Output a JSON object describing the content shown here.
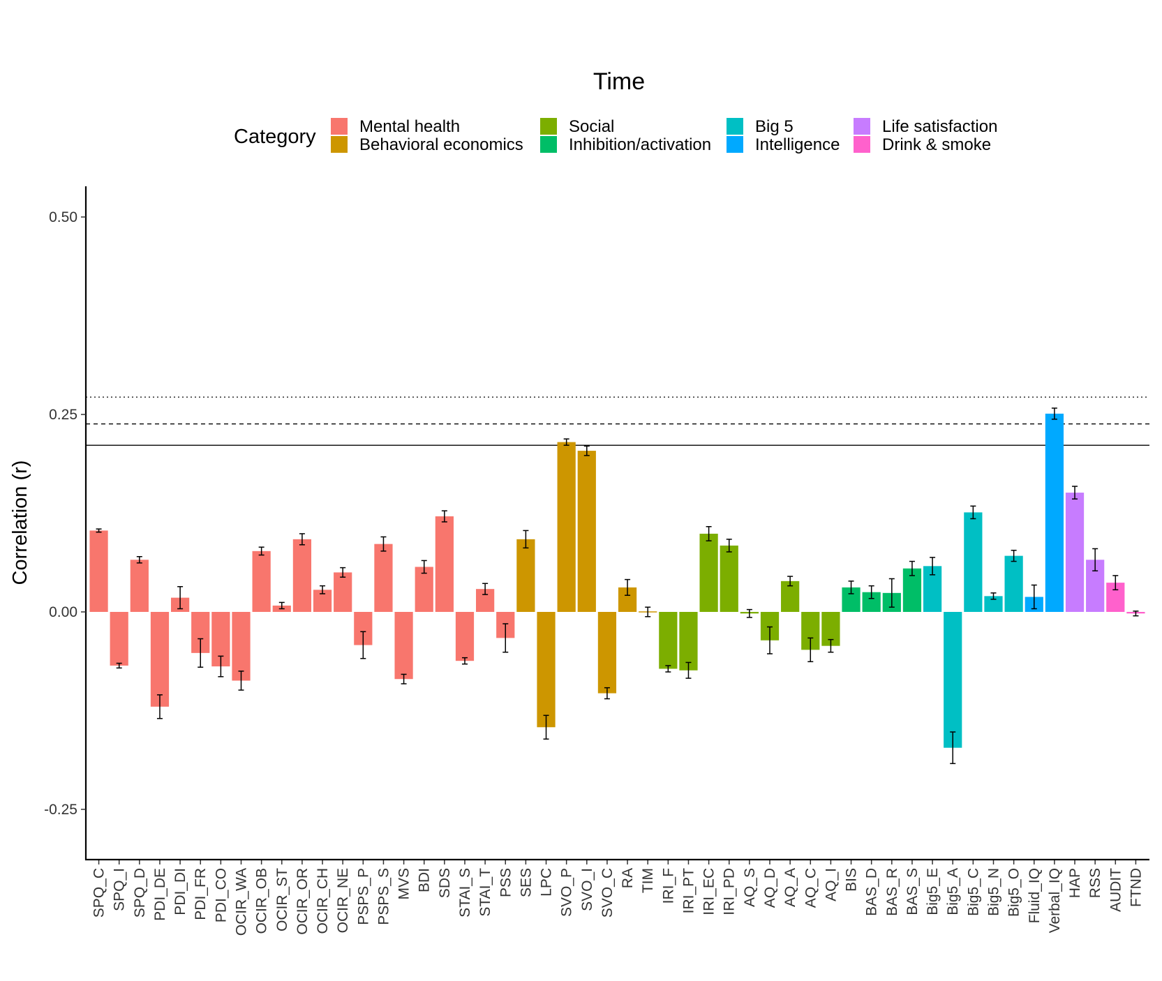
{
  "chart_data": {
    "type": "bar",
    "title": "Time",
    "ylabel": "Correlation (r)",
    "xlabel": "",
    "ylim": [
      -0.31,
      0.54
    ],
    "yticks": [
      -0.25,
      0.0,
      0.25,
      0.5
    ],
    "ytick_labels": [
      "-0.25",
      "0.00",
      "0.25",
      "0.50"
    ],
    "grid": false,
    "legend": {
      "title": "Category",
      "position": "top",
      "entries": [
        {
          "name": "Mental health",
          "color": "#F8766D"
        },
        {
          "name": "Behavioral economics",
          "color": "#CD9600"
        },
        {
          "name": "Social",
          "color": "#7CAE00"
        },
        {
          "name": "Inhibition/activation",
          "color": "#00BE67"
        },
        {
          "name": "Big 5",
          "color": "#00BFC4"
        },
        {
          "name": "Intelligence",
          "color": "#00A9FF"
        },
        {
          "name": "Life satisfaction",
          "color": "#C77CFF"
        },
        {
          "name": "Drink & smoke",
          "color": "#FF61CC"
        }
      ]
    },
    "reference_lines": [
      {
        "y": 0.211,
        "style": "solid"
      },
      {
        "y": 0.238,
        "style": "dashed"
      },
      {
        "y": 0.272,
        "style": "dotted"
      }
    ],
    "bars": [
      {
        "label": "SPQ_C",
        "category": "Mental health",
        "value": 0.103,
        "err": 0.002
      },
      {
        "label": "SPQ_I",
        "category": "Mental health",
        "value": -0.068,
        "err": 0.003
      },
      {
        "label": "SPQ_D",
        "category": "Mental health",
        "value": 0.066,
        "err": 0.004
      },
      {
        "label": "PDI_DE",
        "category": "Mental health",
        "value": -0.12,
        "err": 0.015
      },
      {
        "label": "PDI_DI",
        "category": "Mental health",
        "value": 0.018,
        "err": 0.014
      },
      {
        "label": "PDI_FR",
        "category": "Mental health",
        "value": -0.052,
        "err": 0.018
      },
      {
        "label": "PDI_CO",
        "category": "Mental health",
        "value": -0.069,
        "err": 0.013
      },
      {
        "label": "OCIR_WA",
        "category": "Mental health",
        "value": -0.087,
        "err": 0.012
      },
      {
        "label": "OCIR_OB",
        "category": "Mental health",
        "value": 0.077,
        "err": 0.005
      },
      {
        "label": "OCIR_ST",
        "category": "Mental health",
        "value": 0.008,
        "err": 0.004
      },
      {
        "label": "OCIR_OR",
        "category": "Mental health",
        "value": 0.092,
        "err": 0.007
      },
      {
        "label": "OCIR_CH",
        "category": "Mental health",
        "value": 0.028,
        "err": 0.005
      },
      {
        "label": "OCIR_NE",
        "category": "Mental health",
        "value": 0.05,
        "err": 0.006
      },
      {
        "label": "PSPS_P",
        "category": "Mental health",
        "value": -0.042,
        "err": 0.017
      },
      {
        "label": "PSPS_S",
        "category": "Mental health",
        "value": 0.086,
        "err": 0.009
      },
      {
        "label": "MVS",
        "category": "Mental health",
        "value": -0.085,
        "err": 0.006
      },
      {
        "label": "BDI",
        "category": "Mental health",
        "value": 0.057,
        "err": 0.008
      },
      {
        "label": "SDS",
        "category": "Mental health",
        "value": 0.121,
        "err": 0.007
      },
      {
        "label": "STAI_S",
        "category": "Mental health",
        "value": -0.062,
        "err": 0.004
      },
      {
        "label": "STAI_T",
        "category": "Mental health",
        "value": 0.029,
        "err": 0.007
      },
      {
        "label": "PSS",
        "category": "Mental health",
        "value": -0.033,
        "err": 0.018
      },
      {
        "label": "SES",
        "category": "Behavioral economics",
        "value": 0.092,
        "err": 0.011
      },
      {
        "label": "LPC",
        "category": "Behavioral economics",
        "value": -0.146,
        "err": 0.015
      },
      {
        "label": "SVO_P",
        "category": "Behavioral economics",
        "value": 0.215,
        "err": 0.004
      },
      {
        "label": "SVO_I",
        "category": "Behavioral economics",
        "value": 0.204,
        "err": 0.006
      },
      {
        "label": "SVO_C",
        "category": "Behavioral economics",
        "value": -0.103,
        "err": 0.007
      },
      {
        "label": "RA",
        "category": "Behavioral economics",
        "value": 0.031,
        "err": 0.01
      },
      {
        "label": "TIM",
        "category": "Behavioral economics",
        "value": 0.0,
        "err": 0.006
      },
      {
        "label": "IRI_F",
        "category": "Social",
        "value": -0.072,
        "err": 0.004
      },
      {
        "label": "IRI_PT",
        "category": "Social",
        "value": -0.074,
        "err": 0.01
      },
      {
        "label": "IRI_EC",
        "category": "Social",
        "value": 0.099,
        "err": 0.009
      },
      {
        "label": "IRI_PD",
        "category": "Social",
        "value": 0.084,
        "err": 0.008
      },
      {
        "label": "AQ_S",
        "category": "Social",
        "value": -0.002,
        "err": 0.005
      },
      {
        "label": "AQ_D",
        "category": "Social",
        "value": -0.036,
        "err": 0.017
      },
      {
        "label": "AQ_A",
        "category": "Social",
        "value": 0.039,
        "err": 0.006
      },
      {
        "label": "AQ_C",
        "category": "Social",
        "value": -0.048,
        "err": 0.015
      },
      {
        "label": "AQ_I",
        "category": "Social",
        "value": -0.043,
        "err": 0.008
      },
      {
        "label": "BIS",
        "category": "Inhibition/activation",
        "value": 0.031,
        "err": 0.008
      },
      {
        "label": "BAS_D",
        "category": "Inhibition/activation",
        "value": 0.025,
        "err": 0.008
      },
      {
        "label": "BAS_R",
        "category": "Inhibition/activation",
        "value": 0.024,
        "err": 0.018
      },
      {
        "label": "BAS_S",
        "category": "Inhibition/activation",
        "value": 0.055,
        "err": 0.009
      },
      {
        "label": "Big5_E",
        "category": "Big 5",
        "value": 0.058,
        "err": 0.011
      },
      {
        "label": "Big5_A",
        "category": "Big 5",
        "value": -0.172,
        "err": 0.02
      },
      {
        "label": "Big5_C",
        "category": "Big 5",
        "value": 0.126,
        "err": 0.008
      },
      {
        "label": "Big5_N",
        "category": "Big 5",
        "value": 0.02,
        "err": 0.004
      },
      {
        "label": "Big5_O",
        "category": "Big 5",
        "value": 0.071,
        "err": 0.007
      },
      {
        "label": "Fluid_IQ",
        "category": "Intelligence",
        "value": 0.019,
        "err": 0.015
      },
      {
        "label": "Verbal_IQ",
        "category": "Intelligence",
        "value": 0.251,
        "err": 0.007
      },
      {
        "label": "HAP",
        "category": "Life satisfaction",
        "value": 0.151,
        "err": 0.008
      },
      {
        "label": "RSS",
        "category": "Life satisfaction",
        "value": 0.066,
        "err": 0.014
      },
      {
        "label": "AUDIT",
        "category": "Drink & smoke",
        "value": 0.037,
        "err": 0.009
      },
      {
        "label": "FTND",
        "category": "Drink & smoke",
        "value": -0.002,
        "err": 0.003
      }
    ]
  }
}
